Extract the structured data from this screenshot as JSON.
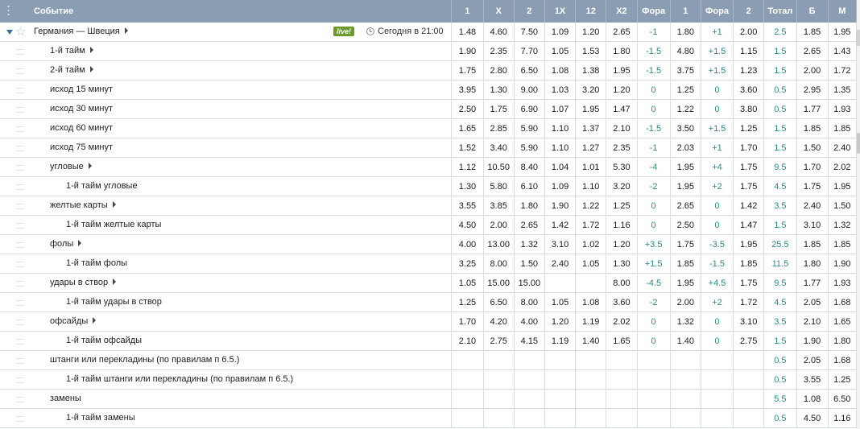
{
  "columns": {
    "event": "Событие",
    "odds": [
      "1",
      "X",
      "2",
      "1X",
      "12",
      "X2",
      "Фора",
      "1",
      "Фора",
      "2",
      "Тотал",
      "Б",
      "М"
    ]
  },
  "main_event": {
    "name": "Германия — Швеция",
    "live_badge": "live!",
    "time": "Сегодня в 21:00",
    "odds": [
      "1.48",
      "4.60",
      "7.50",
      "1.09",
      "1.20",
      "2.65",
      "-1",
      "1.80",
      "+1",
      "2.00",
      "2.5",
      "1.85",
      "1.95"
    ]
  },
  "rows": [
    {
      "label": "1-й тайм",
      "level": 1,
      "has_arrow": true,
      "odds": [
        "1.90",
        "2.35",
        "7.70",
        "1.05",
        "1.53",
        "1.80",
        "-1.5",
        "4.80",
        "+1.5",
        "1.15",
        "1.5",
        "2.65",
        "1.43"
      ]
    },
    {
      "label": "2-й тайм",
      "level": 1,
      "has_arrow": true,
      "odds": [
        "1.75",
        "2.80",
        "6.50",
        "1.08",
        "1.38",
        "1.95",
        "-1.5",
        "3.75",
        "+1.5",
        "1.23",
        "1.5",
        "2.00",
        "1.72"
      ]
    },
    {
      "label": "исход 15 минут",
      "level": 1,
      "has_arrow": false,
      "odds": [
        "3.95",
        "1.30",
        "9.00",
        "1.03",
        "3.20",
        "1.20",
        "0",
        "1.25",
        "0",
        "3.60",
        "0.5",
        "2.95",
        "1.35"
      ]
    },
    {
      "label": "исход 30 минут",
      "level": 1,
      "has_arrow": false,
      "odds": [
        "2.50",
        "1.75",
        "6.90",
        "1.07",
        "1.95",
        "1.47",
        "0",
        "1.22",
        "0",
        "3.80",
        "0.5",
        "1.77",
        "1.93"
      ]
    },
    {
      "label": "исход 60 минут",
      "level": 1,
      "has_arrow": false,
      "odds": [
        "1.65",
        "2.85",
        "5.90",
        "1.10",
        "1.37",
        "2.10",
        "-1.5",
        "3.50",
        "+1.5",
        "1.25",
        "1.5",
        "1.85",
        "1.85"
      ]
    },
    {
      "label": "исход 75 минут",
      "level": 1,
      "has_arrow": false,
      "odds": [
        "1.52",
        "3.40",
        "5.90",
        "1.10",
        "1.27",
        "2.35",
        "-1",
        "2.03",
        "+1",
        "1.70",
        "1.5",
        "1.50",
        "2.40"
      ]
    },
    {
      "label": "угловые",
      "level": 1,
      "has_arrow": true,
      "odds": [
        "1.12",
        "10.50",
        "8.40",
        "1.04",
        "1.01",
        "5.30",
        "-4",
        "1.95",
        "+4",
        "1.75",
        "9.5",
        "1.70",
        "2.02"
      ]
    },
    {
      "label": "1-й тайм угловые",
      "level": 2,
      "has_arrow": false,
      "odds": [
        "1.30",
        "5.80",
        "6.10",
        "1.09",
        "1.10",
        "3.20",
        "-2",
        "1.95",
        "+2",
        "1.75",
        "4.5",
        "1.75",
        "1.95"
      ]
    },
    {
      "label": "желтые карты",
      "level": 1,
      "has_arrow": true,
      "odds": [
        "3.55",
        "3.85",
        "1.80",
        "1.90",
        "1.22",
        "1.25",
        "0",
        "2.65",
        "0",
        "1.42",
        "3.5",
        "2.40",
        "1.50"
      ]
    },
    {
      "label": "1-й тайм желтые карты",
      "level": 2,
      "has_arrow": false,
      "odds": [
        "4.50",
        "2.00",
        "2.65",
        "1.42",
        "1.72",
        "1.16",
        "0",
        "2.50",
        "0",
        "1.47",
        "1.5",
        "3.10",
        "1.32"
      ]
    },
    {
      "label": "фолы",
      "level": 1,
      "has_arrow": true,
      "odds": [
        "4.00",
        "13.00",
        "1.32",
        "3.10",
        "1.02",
        "1.20",
        "+3.5",
        "1.75",
        "-3.5",
        "1.95",
        "25.5",
        "1.85",
        "1.85"
      ]
    },
    {
      "label": "1-й тайм фолы",
      "level": 2,
      "has_arrow": false,
      "odds": [
        "3.25",
        "8.00",
        "1.50",
        "2.40",
        "1.05",
        "1.30",
        "+1.5",
        "1.85",
        "-1.5",
        "1.85",
        "11.5",
        "1.80",
        "1.90"
      ]
    },
    {
      "label": "удары в створ",
      "level": 1,
      "has_arrow": true,
      "odds": [
        "1.05",
        "15.00",
        "15.00",
        "",
        "",
        "8.00",
        "-4.5",
        "1.95",
        "+4.5",
        "1.75",
        "9.5",
        "1.77",
        "1.93"
      ]
    },
    {
      "label": "1-й тайм удары в створ",
      "level": 2,
      "has_arrow": false,
      "odds": [
        "1.25",
        "6.50",
        "8.00",
        "1.05",
        "1.08",
        "3.60",
        "-2",
        "2.00",
        "+2",
        "1.72",
        "4.5",
        "2.05",
        "1.68"
      ]
    },
    {
      "label": "офсайды",
      "level": 1,
      "has_arrow": true,
      "odds": [
        "1.70",
        "4.20",
        "4.00",
        "1.20",
        "1.19",
        "2.02",
        "0",
        "1.32",
        "0",
        "3.10",
        "3.5",
        "2.10",
        "1.65"
      ]
    },
    {
      "label": "1-й тайм офсайды",
      "level": 2,
      "has_arrow": false,
      "odds": [
        "2.10",
        "2.75",
        "4.15",
        "1.19",
        "1.40",
        "1.65",
        "0",
        "1.40",
        "0",
        "2.75",
        "1.5",
        "1.90",
        "1.80"
      ]
    },
    {
      "label": "штанги или перекладины (по правилам п 6.5.)",
      "level": 1,
      "has_arrow": false,
      "odds": [
        "",
        "",
        "",
        "",
        "",
        "",
        "",
        "",
        "",
        "",
        "0.5",
        "2.05",
        "1.68"
      ]
    },
    {
      "label": "1-й тайм штанги или перекладины (по правилам п 6.5.)",
      "level": 2,
      "has_arrow": false,
      "odds": [
        "",
        "",
        "",
        "",
        "",
        "",
        "",
        "",
        "",
        "",
        "0.5",
        "3.55",
        "1.25"
      ]
    },
    {
      "label": "замены",
      "level": 1,
      "has_arrow": false,
      "odds": [
        "",
        "",
        "",
        "",
        "",
        "",
        "",
        "",
        "",
        "",
        "5.5",
        "1.08",
        "6.50"
      ]
    },
    {
      "label": "1-й тайм замены",
      "level": 2,
      "has_arrow": false,
      "odds": [
        "",
        "",
        "",
        "",
        "",
        "",
        "",
        "",
        "",
        "",
        "0.5",
        "4.50",
        "1.16"
      ]
    }
  ],
  "colors": {
    "header_bg": "#8b9db3",
    "handicap_text": "#2c8a86",
    "live_badge": "#6a9a2c"
  },
  "icons": [
    "menu-dots-icon",
    "expand-arrow-icon",
    "star-icon",
    "clock-icon",
    "submenu-arrow-icon"
  ]
}
